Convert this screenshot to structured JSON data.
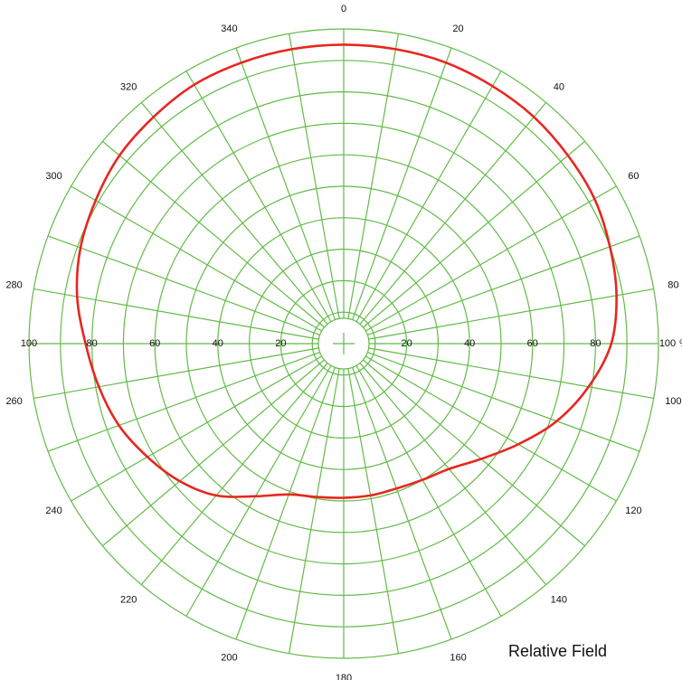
{
  "chart_data": {
    "type": "polar",
    "caption": "Relative Field",
    "radial_unit": "%",
    "radial_range": [
      0,
      100
    ],
    "radial_tick_labels": [
      "20",
      "40",
      "60",
      "80",
      "100"
    ],
    "angular_tick_labels": [
      "0",
      "20",
      "40",
      "60",
      "80",
      "100",
      "120",
      "140",
      "160",
      "180",
      "200",
      "220",
      "240",
      "260",
      "280",
      "300",
      "320",
      "340"
    ],
    "angular_range": [
      0,
      360
    ],
    "grid": true,
    "colors": {
      "grid": "#62bb46",
      "series": "#e8261f",
      "text": "#111111"
    },
    "series": [
      {
        "points": [
          {
            "angle": 0,
            "r": 95
          },
          {
            "angle": 10,
            "r": 95
          },
          {
            "angle": 20,
            "r": 95
          },
          {
            "angle": 30,
            "r": 94.5
          },
          {
            "angle": 40,
            "r": 94
          },
          {
            "angle": 50,
            "r": 93
          },
          {
            "angle": 60,
            "r": 92
          },
          {
            "angle": 70,
            "r": 90
          },
          {
            "angle": 80,
            "r": 88
          },
          {
            "angle": 90,
            "r": 85
          },
          {
            "angle": 100,
            "r": 79
          },
          {
            "angle": 110,
            "r": 72
          },
          {
            "angle": 120,
            "r": 64
          },
          {
            "angle": 130,
            "r": 57
          },
          {
            "angle": 140,
            "r": 52
          },
          {
            "angle": 150,
            "r": 50
          },
          {
            "angle": 160,
            "r": 49
          },
          {
            "angle": 170,
            "r": 49
          },
          {
            "angle": 180,
            "r": 49
          },
          {
            "angle": 190,
            "r": 49.5
          },
          {
            "angle": 200,
            "r": 51
          },
          {
            "angle": 210,
            "r": 56
          },
          {
            "angle": 220,
            "r": 63
          },
          {
            "angle": 230,
            "r": 68
          },
          {
            "angle": 240,
            "r": 72
          },
          {
            "angle": 250,
            "r": 76
          },
          {
            "angle": 260,
            "r": 79
          },
          {
            "angle": 270,
            "r": 82
          },
          {
            "angle": 280,
            "r": 86
          },
          {
            "angle": 290,
            "r": 89
          },
          {
            "angle": 300,
            "r": 91
          },
          {
            "angle": 310,
            "r": 93
          },
          {
            "angle": 320,
            "r": 94
          },
          {
            "angle": 330,
            "r": 95
          },
          {
            "angle": 340,
            "r": 95
          },
          {
            "angle": 350,
            "r": 95
          }
        ]
      }
    ]
  }
}
